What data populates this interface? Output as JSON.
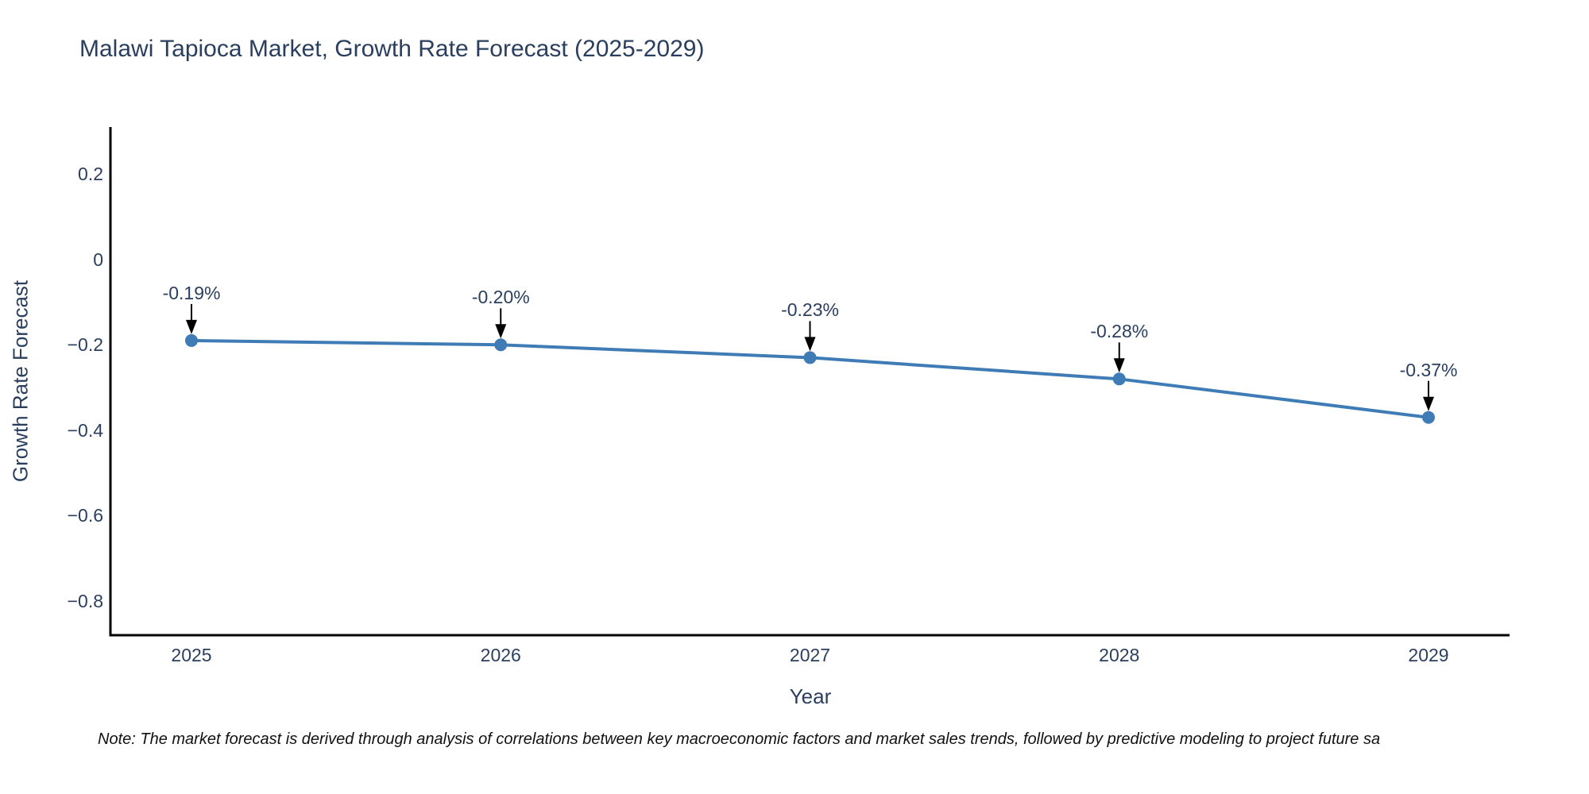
{
  "note": "Note: The market forecast is derived through analysis of correlations between key macroeconomic factors and market sales trends, followed by predictive modeling to project future sa",
  "chart_data": {
    "type": "line",
    "title": "Malawi Tapioca Market, Growth Rate Forecast (2025-2029)",
    "xlabel": "Year",
    "ylabel": "Growth Rate Forecast",
    "categories": [
      "2025",
      "2026",
      "2027",
      "2028",
      "2029"
    ],
    "series": [
      {
        "name": "Growth Rate Forecast",
        "values": [
          -0.19,
          -0.2,
          -0.23,
          -0.28,
          -0.37
        ],
        "point_labels": [
          "-0.19%",
          "-0.20%",
          "-0.23%",
          "-0.28%",
          "-0.37%"
        ]
      }
    ],
    "ylim": [
      -0.88,
      0.31
    ],
    "yticks": {
      "values": [
        0.2,
        0,
        -0.2,
        -0.4,
        -0.6,
        -0.8
      ],
      "labels": [
        "0.2",
        "0",
        "−0.2",
        "−0.4",
        "−0.6",
        "−0.8"
      ]
    },
    "grid": false,
    "legend_position": "none",
    "colors": {
      "line": "#3f7cb6",
      "marker": "#3f7cb6",
      "axis": "#000000",
      "text": "#2a3f5f",
      "arrow": "#000000"
    },
    "annotation_style": "value labels above points with downward arrows"
  }
}
